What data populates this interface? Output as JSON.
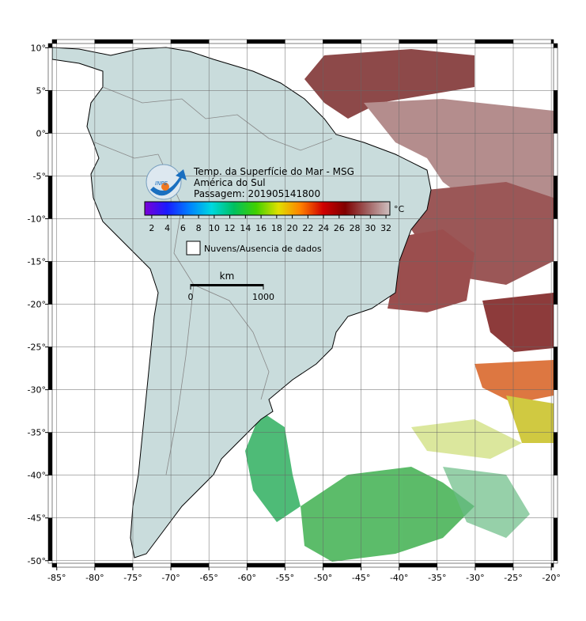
{
  "map": {
    "title": [
      "Temp. da Superfície do Mar - MSG",
      "América do Sul",
      "Passagem: 201905141800"
    ],
    "xlim": [
      -85.6,
      -19.7
    ],
    "ylim": [
      -50.3,
      10.5
    ],
    "xticks": [
      {
        "value": -85,
        "label": "-85°"
      },
      {
        "value": -80,
        "label": "-80°"
      },
      {
        "value": -75,
        "label": "-75°"
      },
      {
        "value": -70,
        "label": "-70°"
      },
      {
        "value": -65,
        "label": "-65°"
      },
      {
        "value": -60,
        "label": "-60°"
      },
      {
        "value": -55,
        "label": "-55°"
      },
      {
        "value": -50,
        "label": "-50°"
      },
      {
        "value": -45,
        "label": "-45°"
      },
      {
        "value": -40,
        "label": "-40°"
      },
      {
        "value": -35,
        "label": "-35°"
      },
      {
        "value": -30,
        "label": "-30°"
      },
      {
        "value": -25,
        "label": "-25°"
      },
      {
        "value": -20,
        "label": "-20°"
      }
    ],
    "yticks": [
      {
        "value": 10,
        "label": "10°"
      },
      {
        "value": 5,
        "label": "5°"
      },
      {
        "value": 0,
        "label": "0°"
      },
      {
        "value": -5,
        "label": "-5°"
      },
      {
        "value": -10,
        "label": "-10°"
      },
      {
        "value": -15,
        "label": "-15°"
      },
      {
        "value": -20,
        "label": "-20°"
      },
      {
        "value": -25,
        "label": "-25°"
      },
      {
        "value": -30,
        "label": "-30°"
      },
      {
        "value": -35,
        "label": "-35°"
      },
      {
        "value": -40,
        "label": "-40°"
      },
      {
        "value": -45,
        "label": "-45°"
      },
      {
        "value": -50,
        "label": "-50°"
      }
    ],
    "grid": true,
    "colorbar": {
      "range": [
        1.1,
        32.5
      ],
      "ticks": [
        2,
        4,
        6,
        8,
        10,
        12,
        14,
        16,
        18,
        20,
        22,
        24,
        26,
        28,
        30,
        32
      ],
      "unit": "°C",
      "colors": [
        "#7b00d6",
        "#1a1aff",
        "#0080ff",
        "#00d8e0",
        "#00c060",
        "#40d000",
        "#e0e000",
        "#ff8000",
        "#d00000",
        "#800000",
        "#a06060",
        "#d0c0c0"
      ]
    },
    "legend": {
      "label": "Nuvens/Ausencia de dados"
    },
    "scale": {
      "unit": "km",
      "ticks": [
        0,
        1000
      ]
    }
  }
}
